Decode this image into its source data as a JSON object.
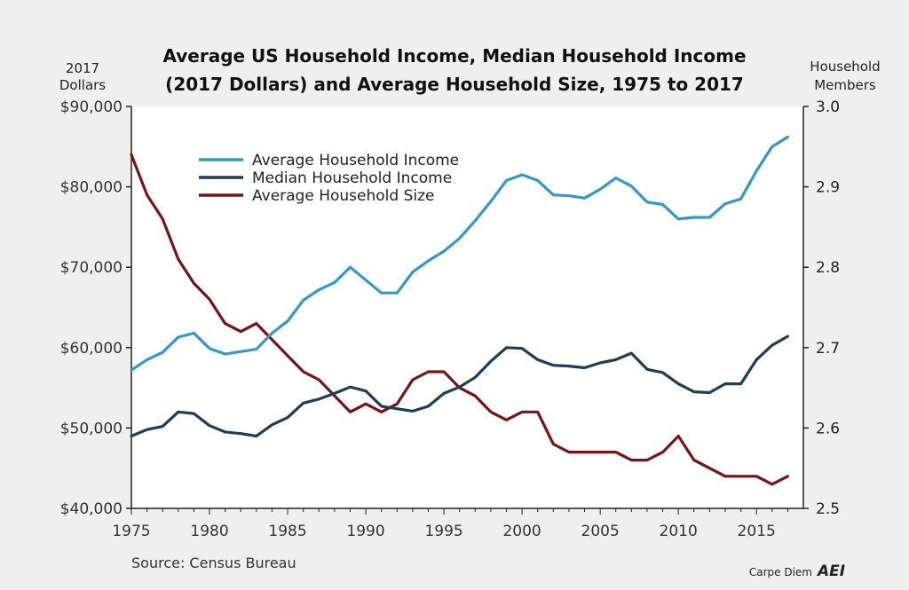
{
  "chart_data": {
    "type": "line",
    "title_line1": "Average US Household Income, Median Household Income",
    "title_line2": "(2017 Dollars) and Average Household Size, 1975 to 2017",
    "left_axis_head": [
      "2017",
      "Dollars"
    ],
    "right_axis_head": [
      "Household",
      "Members"
    ],
    "x": [
      1975,
      1976,
      1977,
      1978,
      1979,
      1980,
      1981,
      1982,
      1983,
      1984,
      1985,
      1986,
      1987,
      1988,
      1989,
      1990,
      1991,
      1992,
      1993,
      1994,
      1995,
      1996,
      1997,
      1998,
      1999,
      2000,
      2001,
      2002,
      2003,
      2004,
      2005,
      2006,
      2007,
      2008,
      2009,
      2010,
      2011,
      2012,
      2013,
      2014,
      2015,
      2016,
      2017
    ],
    "xlim": [
      1975,
      2018
    ],
    "x_ticks": [
      1975,
      1980,
      1985,
      1990,
      1995,
      2000,
      2005,
      2010,
      2015
    ],
    "x_tick_labels": [
      "1975",
      "1980",
      "1985",
      "1990",
      "1995",
      "2000",
      "2005",
      "2010",
      "2015"
    ],
    "y_left_lim": [
      40000,
      90000
    ],
    "y_left_ticks": [
      40000,
      50000,
      60000,
      70000,
      80000,
      90000
    ],
    "y_left_tick_labels": [
      "$40,000",
      "$50,000",
      "$60,000",
      "$70,000",
      "$80,000",
      "$90,000"
    ],
    "y_right_lim": [
      2.5,
      3.0
    ],
    "y_right_ticks": [
      2.5,
      2.6,
      2.7,
      2.8,
      2.9,
      3.0
    ],
    "y_right_tick_labels": [
      "2.5",
      "2.6",
      "2.7",
      "2.8",
      "2.9",
      "3.0"
    ],
    "grid": false,
    "legend_position": "top-left",
    "series": [
      {
        "name": "Average Household Income",
        "axis": "left",
        "color": "#3399cc",
        "values": [
          57200,
          58500,
          59400,
          61300,
          61800,
          59900,
          59200,
          59500,
          59800,
          61800,
          63300,
          65900,
          67200,
          68100,
          70000,
          68400,
          66800,
          66800,
          69400,
          70800,
          72000,
          73600,
          75800,
          78200,
          80800,
          81500,
          80800,
          79000,
          78900,
          78600,
          79700,
          81100,
          80100,
          78100,
          77800,
          76000,
          76200,
          76200,
          77900,
          78500,
          82000,
          85000,
          86200
        ]
      },
      {
        "name": "Median Household Income",
        "axis": "left",
        "color": "#1a3f57",
        "values": [
          49000,
          49800,
          50200,
          52000,
          51800,
          50300,
          49500,
          49300,
          49000,
          50400,
          51300,
          53100,
          53600,
          54300,
          55100,
          54600,
          52700,
          52400,
          52100,
          52700,
          54300,
          55100,
          56300,
          58300,
          60000,
          59900,
          58500,
          57800,
          57700,
          57500,
          58100,
          58500,
          59300,
          57300,
          56900,
          55500,
          54500,
          54400,
          55500,
          55500,
          58500,
          60300,
          61400
        ]
      },
      {
        "name": "Average Household Size",
        "axis": "right",
        "color": "#7a1414",
        "values": [
          2.94,
          2.89,
          2.86,
          2.81,
          2.78,
          2.76,
          2.73,
          2.72,
          2.73,
          2.71,
          2.69,
          2.67,
          2.66,
          2.64,
          2.62,
          2.63,
          2.62,
          2.63,
          2.66,
          2.67,
          2.67,
          2.65,
          2.64,
          2.62,
          2.61,
          2.62,
          2.62,
          2.58,
          2.57,
          2.57,
          2.57,
          2.57,
          2.56,
          2.56,
          2.57,
          2.59,
          2.56,
          2.55,
          2.54,
          2.54,
          2.54,
          2.53,
          2.54
        ]
      }
    ]
  },
  "footer": {
    "source": "Source: Census Bureau",
    "credit": "Carpe Diem",
    "logo": "AEI"
  }
}
